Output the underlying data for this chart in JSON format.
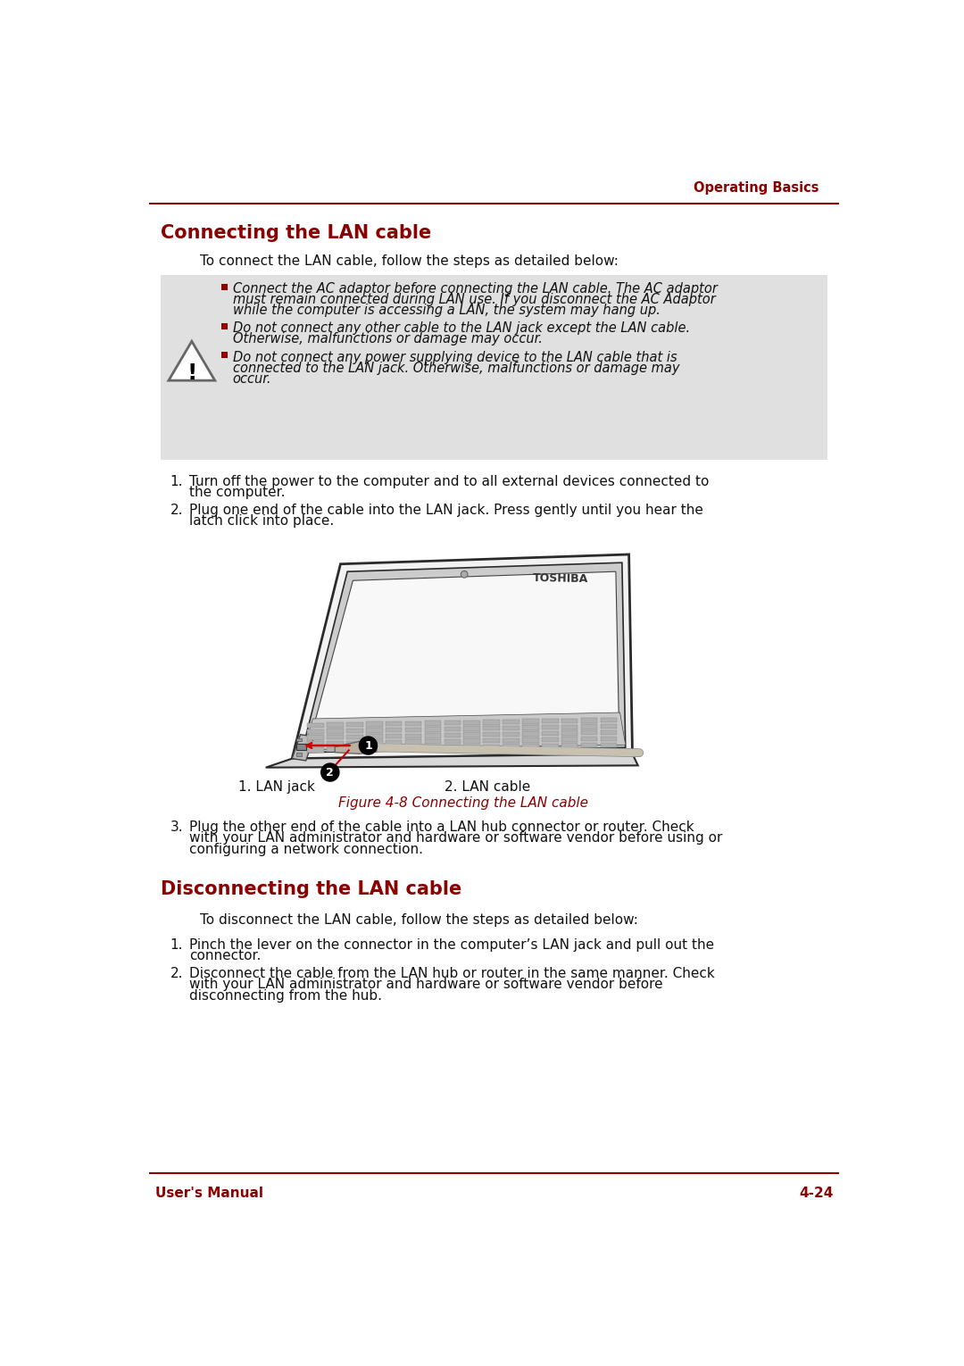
{
  "bg_color": "#ffffff",
  "header_text": "Operating Basics",
  "header_color": "#8B0000",
  "line_color": "#8B0000",
  "footer_left": "User's Manual",
  "footer_right": "4-24",
  "footer_color": "#8B0000",
  "section1_title": "Connecting the LAN cable",
  "section1_color": "#8B0000",
  "intro1": "To connect the LAN cable, follow the steps as detailed below:",
  "warning_bg": "#e0e0e0",
  "warning_bullets": [
    "Connect the AC adaptor before connecting the LAN cable. The AC adaptor must remain connected during LAN use. If you disconnect the AC Adaptor while the computer is accessing a LAN, the system may hang up.",
    "Do not connect any other cable to the LAN jack except the LAN cable. Otherwise, malfunctions or damage may occur.",
    "Do not connect any power supplying device to the LAN cable that is connected to the LAN jack. Otherwise, malfunctions or damage may occur."
  ],
  "bullet_color": "#8B0000",
  "steps1": [
    "Turn off the power to the computer and to all external devices connected to the computer.",
    "Plug one end of the cable into the LAN jack. Press gently until you hear the latch click into place."
  ],
  "fig_caption": "Figure 4-8 Connecting the LAN cable",
  "fig_caption_color": "#8B0000",
  "label1": "1. LAN jack",
  "label2": "2. LAN cable",
  "step1_3": "Plug the other end of the cable into a LAN hub connector or router. Check with your LAN administrator and hardware or software vendor before using or configuring a network connection.",
  "section2_title": "Disconnecting the LAN cable",
  "section2_color": "#8B0000",
  "intro2": "To disconnect the LAN cable, follow the steps as detailed below:",
  "steps2": [
    "Pinch the lever on the connector in the computer’s LAN jack and pull out the connector.",
    "Disconnect the cable from the LAN hub or router in the same manner. Check with your LAN administrator and hardware or software vendor before disconnecting from the hub."
  ]
}
